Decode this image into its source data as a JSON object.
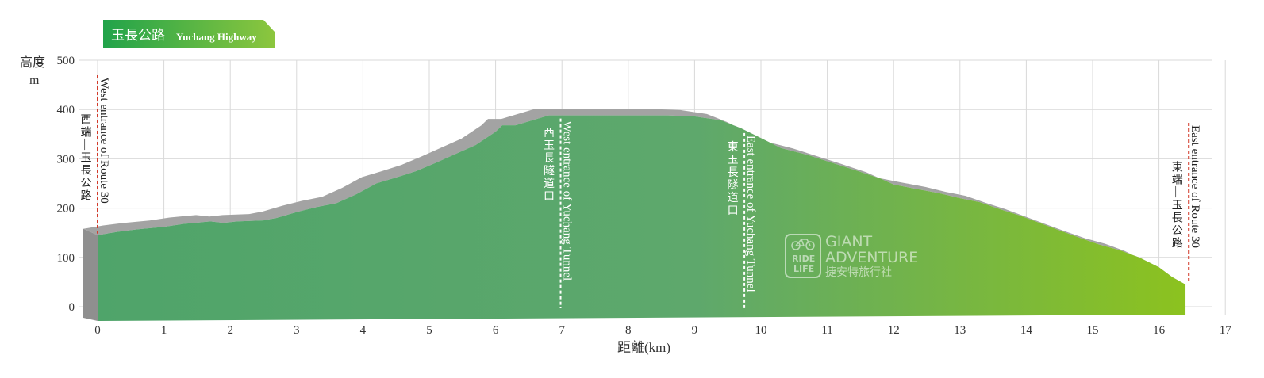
{
  "header": {
    "title_cn": "玉長公路",
    "title_en": "Yuchang Highway"
  },
  "watermark": {
    "line1": "GIANT",
    "line2": "ADVENTURE",
    "line3": "捷安特旅行社",
    "badge_top": "RIDE",
    "badge_bottom": "LIFE"
  },
  "chart_data": {
    "type": "area",
    "title": "玉長公路 Yuchang Highway",
    "ylabel_cn": "高度",
    "ylabel_unit": "m",
    "xlabel": "距離(km)",
    "xlim": [
      0,
      17
    ],
    "ylim": [
      0,
      500
    ],
    "xticks": [
      0,
      1,
      2,
      3,
      4,
      5,
      6,
      7,
      8,
      9,
      10,
      11,
      12,
      13,
      14,
      15,
      16,
      17
    ],
    "yticks": [
      0,
      100,
      200,
      300,
      400,
      500
    ],
    "grid": true,
    "colors": {
      "start": "#4fa46a",
      "mid": "#5ea86c",
      "end": "#8cc21f",
      "side": "#a3a3a3",
      "marker_red": "#d33a2a",
      "marker_white": "#ffffff"
    },
    "series": [
      {
        "x": [
          0.0,
          0.3,
          0.6,
          1.0,
          1.3,
          1.7,
          1.9,
          2.1,
          2.5,
          2.7,
          3.0,
          3.3,
          3.6,
          3.9,
          4.2,
          4.5,
          4.8,
          5.1,
          5.4,
          5.7,
          6.0,
          6.1,
          6.3,
          6.6,
          6.8,
          7.0,
          7.4,
          8.0,
          8.6,
          9.0,
          9.4,
          9.7,
          10.0,
          10.3,
          10.7,
          11.0,
          11.4,
          11.8,
          12.0,
          12.3,
          12.7,
          13.0,
          13.3,
          13.6,
          13.9,
          14.2,
          14.5,
          14.8,
          15.1,
          15.4,
          15.7,
          16.0,
          16.2,
          16.4
        ],
        "y": [
          145,
          152,
          157,
          162,
          168,
          173,
          170,
          173,
          175,
          180,
          192,
          202,
          210,
          228,
          250,
          262,
          275,
          292,
          310,
          328,
          355,
          368,
          368,
          380,
          388,
          388,
          388,
          388,
          388,
          386,
          378,
          362,
          342,
          322,
          308,
          295,
          278,
          260,
          248,
          240,
          230,
          220,
          212,
          198,
          185,
          170,
          155,
          140,
          126,
          115,
          100,
          80,
          60,
          45
        ]
      }
    ],
    "annotations": [
      {
        "km": 0.0,
        "en": "West entrance of Route 30",
        "cn": "西端—玉長公路",
        "color": "red"
      },
      {
        "km": 6.98,
        "en": "West entrance of Yuchang Tunnel",
        "cn": "西玉長隧道口",
        "color": "white"
      },
      {
        "km": 9.75,
        "en": "East entrance of Yuchang Tunnel",
        "cn": "東玉長隧道口",
        "color": "white"
      },
      {
        "km": 16.45,
        "en": "East entrance of Route 30",
        "cn": "東端—玉長公路",
        "color": "red"
      }
    ]
  }
}
